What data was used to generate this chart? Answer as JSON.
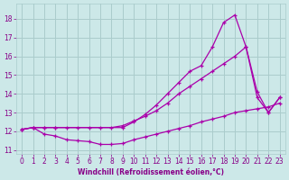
{
  "background_color": "#cce8e8",
  "grid_color": "#aacccc",
  "line_color": "#aa00aa",
  "xlabel": "Windchill (Refroidissement éolien,°C)",
  "xlabel_color": "#880088",
  "tick_color": "#880088",
  "xlim": [
    -0.5,
    23.5
  ],
  "ylim": [
    10.8,
    18.8
  ],
  "yticks": [
    11,
    12,
    13,
    14,
    15,
    16,
    17,
    18
  ],
  "xticks": [
    0,
    1,
    2,
    3,
    4,
    5,
    6,
    7,
    8,
    9,
    10,
    11,
    12,
    13,
    14,
    15,
    16,
    17,
    18,
    19,
    20,
    21,
    22,
    23
  ],
  "line1_x": [
    0,
    1,
    2,
    3,
    4,
    5,
    6,
    7,
    8,
    9,
    10,
    11,
    12,
    13,
    14,
    15,
    16,
    17,
    18,
    19,
    20,
    21,
    22,
    23
  ],
  "line1_y": [
    12.1,
    12.2,
    11.85,
    11.75,
    11.55,
    11.5,
    11.45,
    11.3,
    11.3,
    11.35,
    11.55,
    11.7,
    11.85,
    12.0,
    12.15,
    12.3,
    12.5,
    12.65,
    12.8,
    13.0,
    13.1,
    13.2,
    13.3,
    13.5
  ],
  "line2_x": [
    0,
    1,
    2,
    3,
    4,
    5,
    6,
    7,
    8,
    9,
    10,
    11,
    12,
    13,
    14,
    15,
    16,
    17,
    18,
    19,
    20,
    21,
    22,
    23
  ],
  "line2_y": [
    12.1,
    12.2,
    12.2,
    12.2,
    12.2,
    12.2,
    12.2,
    12.2,
    12.2,
    12.3,
    12.55,
    12.8,
    13.1,
    13.5,
    14.0,
    14.4,
    14.8,
    15.2,
    15.6,
    16.0,
    16.5,
    13.8,
    13.0,
    13.8
  ],
  "line3_x": [
    0,
    1,
    2,
    3,
    9,
    10,
    11,
    12,
    13,
    14,
    15,
    16,
    17,
    18,
    19,
    20,
    21,
    22,
    23
  ],
  "line3_y": [
    12.1,
    12.2,
    12.2,
    12.2,
    12.2,
    12.5,
    12.9,
    13.4,
    14.0,
    14.6,
    15.2,
    15.5,
    16.5,
    17.8,
    18.2,
    16.5,
    14.1,
    13.0,
    13.8
  ]
}
